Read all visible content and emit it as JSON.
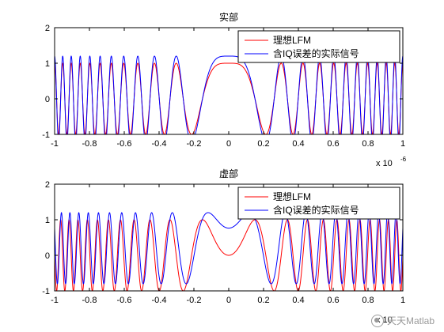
{
  "chart_data": [
    {
      "type": "line",
      "title": "实部",
      "xlim": [
        -1,
        1
      ],
      "ylim": [
        -1,
        2
      ],
      "xticks": [
        "-1",
        "-0.8",
        "-0.6",
        "-0.4",
        "-0.2",
        "0",
        "0.2",
        "0.4",
        "0.6",
        "0.8",
        "1"
      ],
      "yticks": [
        "-1",
        "0",
        "1",
        "2"
      ],
      "x_exponent": "x 10",
      "x_exponent_power": "-6",
      "legend": "top-right",
      "grid": false,
      "series": [
        {
          "name": "理想LFM",
          "color": "#ff0000",
          "amplitude": 1.0,
          "offset": 0,
          "phase": 0
        },
        {
          "name": "含IQ误差的实际信号",
          "color": "#0000ff",
          "amplitude": 1.2,
          "offset": 0,
          "phase": 0
        }
      ]
    },
    {
      "type": "line",
      "title": "虚部",
      "xlim": [
        -1,
        1
      ],
      "ylim": [
        -1,
        2
      ],
      "xticks": [
        "-1",
        "-0.8",
        "-0.6",
        "-0.4",
        "-0.2",
        "0",
        "0.2",
        "0.4",
        "0.6",
        "0.8",
        "1"
      ],
      "yticks": [
        "-1",
        "0",
        "1",
        "2"
      ],
      "x_exponent": "x 10",
      "x_exponent_power": "",
      "legend": "top-right",
      "grid": false,
      "series": [
        {
          "name": "理想LFM",
          "color": "#ff0000",
          "amplitude": 1.0,
          "offset": 0,
          "phase": 0
        },
        {
          "name": "含IQ误差的实际信号",
          "color": "#0000ff",
          "amplitude": 1.0,
          "offset": 0.2,
          "phase": 0.6
        }
      ]
    }
  ],
  "watermark": "天天Matlab"
}
